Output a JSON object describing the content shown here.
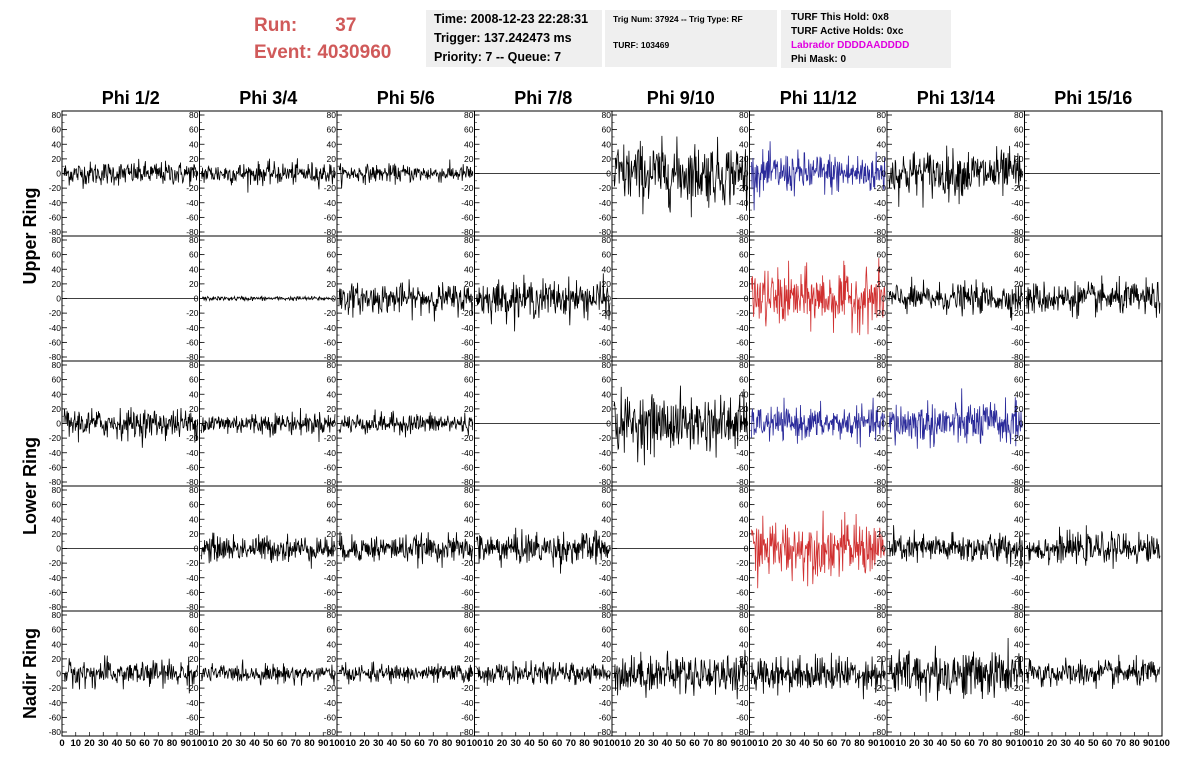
{
  "header": {
    "run_label": "Run:",
    "run_value": "37",
    "event_label": "Event:",
    "event_value": "4030960"
  },
  "info_box_1": {
    "time": "Time: 2008-12-23 22:28:31",
    "trigger": "Trigger: 137.242473 ms",
    "priority": "Priority: 7 -- Queue: 7"
  },
  "info_box_2": {
    "trig_line": "Trig Num: 37924 -- Trig Type: RF",
    "turf_line": "TURF: 103469"
  },
  "info_box_3": {
    "this_hold": "TURF This Hold: 0x8",
    "active_holds": "TURF Active Holds: 0xc",
    "labrador": "Labrador DDDDAADDDD",
    "phi_mask": "Phi Mask: 0",
    "labrador_color": "#e000e0"
  },
  "chart_data": {
    "type": "line",
    "columns": [
      "Phi 1/2",
      "Phi 3/4",
      "Phi 5/6",
      "Phi 7/8",
      "Phi 9/10",
      "Phi 11/12",
      "Phi 13/14",
      "Phi 15/16"
    ],
    "ring_labels": [
      {
        "label": "Upper Ring",
        "rows": [
          0,
          1
        ]
      },
      {
        "label": "Lower Ring",
        "rows": [
          2,
          3
        ]
      },
      {
        "label": "Nadir Ring",
        "rows": [
          4
        ]
      }
    ],
    "rows": 5,
    "ylim": [
      -80,
      80
    ],
    "xlim": [
      0,
      100
    ],
    "y_ticks": [
      "80",
      "60",
      "40",
      "20",
      "0",
      "-20",
      "-40",
      "-60",
      "-80"
    ],
    "x_ticks": [
      "0",
      "10",
      "20",
      "30",
      "40",
      "50",
      "60",
      "70",
      "80",
      "90",
      "100"
    ],
    "colors": {
      "black": "#000000",
      "blue": "#2a2a9a",
      "red": "#d03030"
    },
    "cells": [
      [
        {
          "amp": 16,
          "color": "black"
        },
        {
          "amp": 15,
          "color": "black"
        },
        {
          "amp": 12,
          "color": "black"
        },
        {
          "amp": 0,
          "color": "black"
        },
        {
          "amp": 42,
          "color": "black"
        },
        {
          "amp": 28,
          "color": "blue"
        },
        {
          "amp": 32,
          "color": "black"
        },
        {
          "amp": 0,
          "color": "black"
        }
      ],
      [
        {
          "amp": 0,
          "color": "black"
        },
        {
          "amp": 3,
          "color": "black"
        },
        {
          "amp": 20,
          "color": "black"
        },
        {
          "amp": 25,
          "color": "black"
        },
        {
          "amp": 0,
          "color": "black"
        },
        {
          "amp": 38,
          "color": "red"
        },
        {
          "amp": 20,
          "color": "black"
        },
        {
          "amp": 22,
          "color": "black"
        }
      ],
      [
        {
          "amp": 20,
          "color": "black"
        },
        {
          "amp": 15,
          "color": "black"
        },
        {
          "amp": 14,
          "color": "black"
        },
        {
          "amp": 0,
          "color": "black"
        },
        {
          "amp": 38,
          "color": "black"
        },
        {
          "amp": 22,
          "color": "blue"
        },
        {
          "amp": 30,
          "color": "blue"
        },
        {
          "amp": 0,
          "color": "black"
        }
      ],
      [
        {
          "amp": 0,
          "color": "black"
        },
        {
          "amp": 18,
          "color": "black"
        },
        {
          "amp": 18,
          "color": "black"
        },
        {
          "amp": 22,
          "color": "black"
        },
        {
          "amp": 0,
          "color": "black"
        },
        {
          "amp": 38,
          "color": "red"
        },
        {
          "amp": 20,
          "color": "black"
        },
        {
          "amp": 20,
          "color": "black"
        }
      ],
      [
        {
          "amp": 18,
          "color": "black"
        },
        {
          "amp": 12,
          "color": "black"
        },
        {
          "amp": 12,
          "color": "black"
        },
        {
          "amp": 14,
          "color": "black"
        },
        {
          "amp": 26,
          "color": "black"
        },
        {
          "amp": 24,
          "color": "black"
        },
        {
          "amp": 32,
          "color": "black"
        },
        {
          "amp": 18,
          "color": "black"
        }
      ]
    ]
  }
}
